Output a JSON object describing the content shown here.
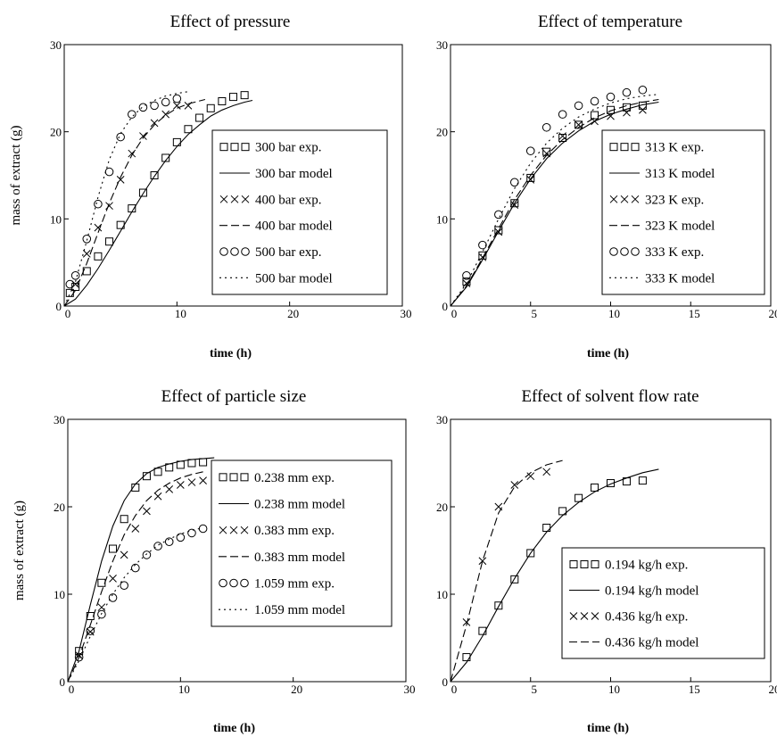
{
  "chart_data": [
    {
      "type": "line",
      "title": "Effect of pressure",
      "xlabel": "time (h)",
      "ylabel": "mass of extract (g)",
      "xlim": [
        0,
        30
      ],
      "ylim": [
        0,
        30
      ],
      "xticks": [
        "0",
        "10",
        "20",
        "30"
      ],
      "yticks": [
        "0",
        "10",
        "20",
        "30"
      ],
      "legend": "right",
      "series": [
        {
          "name": "300 bar exp.",
          "kind": "marker",
          "marker": "square",
          "x": [
            0.5,
            1,
            2,
            3,
            4,
            5,
            6,
            7,
            8,
            9,
            10,
            11,
            12,
            13,
            14,
            15,
            16
          ],
          "y": [
            1.5,
            2.2,
            4,
            5.7,
            7.4,
            9.3,
            11.2,
            13,
            15,
            17,
            18.8,
            20.3,
            21.6,
            22.7,
            23.5,
            24,
            24.2
          ]
        },
        {
          "name": "300 bar model",
          "kind": "line",
          "dash": "solid",
          "x": [
            0,
            1,
            2,
            3,
            4,
            5,
            6,
            7,
            8,
            9,
            10,
            11,
            12,
            13,
            14,
            15,
            16,
            16.7
          ],
          "y": [
            0,
            0.8,
            2.4,
            4.3,
            6.4,
            8.6,
            10.8,
            12.9,
            14.9,
            16.7,
            18.3,
            19.7,
            20.8,
            21.8,
            22.5,
            23,
            23.4,
            23.6
          ]
        },
        {
          "name": "400 bar exp.",
          "kind": "marker",
          "marker": "cross",
          "x": [
            1,
            2,
            3,
            4,
            5,
            6,
            7,
            8,
            9,
            10,
            11
          ],
          "y": [
            2.5,
            6,
            9,
            11.5,
            14.5,
            17.5,
            19.5,
            21,
            22,
            23,
            23
          ]
        },
        {
          "name": "400 bar model",
          "kind": "line",
          "dash": "dash",
          "x": [
            0,
            1,
            2,
            3,
            4,
            5,
            6,
            7,
            8,
            9,
            10,
            11,
            12.5
          ],
          "y": [
            0,
            1.8,
            4.9,
            8.4,
            11.8,
            14.8,
            17.3,
            19.3,
            20.8,
            21.9,
            22.7,
            23.2,
            23.7
          ]
        },
        {
          "name": "500 bar exp.",
          "kind": "marker",
          "marker": "circle",
          "x": [
            0.5,
            1,
            2,
            3,
            4,
            5,
            6,
            7,
            8,
            9,
            10
          ],
          "y": [
            2.5,
            3.5,
            7.7,
            11.7,
            15.4,
            19.4,
            22,
            22.8,
            23,
            23.4,
            23.8
          ]
        },
        {
          "name": "500 bar  model",
          "kind": "line",
          "dash": "dot",
          "x": [
            0,
            1,
            2,
            3,
            4,
            5,
            6,
            7,
            8,
            9,
            10,
            11
          ],
          "y": [
            0,
            2.8,
            7.5,
            12.5,
            16.8,
            19.8,
            21.7,
            22.9,
            23.6,
            24.1,
            24.4,
            24.6
          ]
        }
      ]
    },
    {
      "type": "line",
      "title": "Effect of temperature",
      "xlabel": "time (h)",
      "ylabel": "",
      "xlim": [
        0,
        20
      ],
      "ylim": [
        0,
        30
      ],
      "xticks": [
        "0",
        "5",
        "10",
        "15",
        "20"
      ],
      "yticks": [
        "0",
        "10",
        "20",
        "30"
      ],
      "legend": "right",
      "series": [
        {
          "name": "313 K exp.",
          "kind": "marker",
          "marker": "square",
          "x": [
            1,
            2,
            3,
            4,
            5,
            6,
            7,
            8,
            9,
            10,
            11,
            12
          ],
          "y": [
            2.8,
            5.8,
            8.7,
            11.8,
            14.7,
            17.7,
            19.3,
            20.8,
            21.9,
            22.5,
            22.8,
            23
          ]
        },
        {
          "name": "313 K model",
          "kind": "line",
          "dash": "solid",
          "x": [
            0,
            1,
            2,
            3,
            4,
            5,
            6,
            7,
            8,
            9,
            10,
            11,
            12,
            13
          ],
          "y": [
            0,
            2.2,
            5.3,
            8.6,
            11.8,
            14.6,
            16.9,
            18.7,
            20.1,
            21.2,
            22,
            22.6,
            23.1,
            23.4
          ]
        },
        {
          "name": "323 K exp.",
          "kind": "marker",
          "marker": "cross",
          "x": [
            1,
            2,
            3,
            4,
            5,
            6,
            7,
            8,
            9,
            10,
            11,
            12
          ],
          "y": [
            2.6,
            5.6,
            8.5,
            11.6,
            14.5,
            17.5,
            19.5,
            20.8,
            21.2,
            21.8,
            22.2,
            22.5
          ]
        },
        {
          "name": "323 K model",
          "kind": "line",
          "dash": "dash",
          "x": [
            0,
            1,
            2,
            3,
            4,
            5,
            6,
            7,
            8,
            9,
            10,
            11,
            12,
            13
          ],
          "y": [
            0,
            2.3,
            5.5,
            8.9,
            12.2,
            15,
            17.3,
            19.1,
            20.5,
            21.6,
            22.4,
            23,
            23.4,
            23.7
          ]
        },
        {
          "name": "333 K exp.",
          "kind": "marker",
          "marker": "circle",
          "x": [
            1,
            2,
            3,
            4,
            5,
            6,
            7,
            8,
            9,
            10,
            11,
            12
          ],
          "y": [
            3.5,
            7,
            10.5,
            14.2,
            17.8,
            20.5,
            22,
            23,
            23.5,
            24,
            24.5,
            24.8
          ]
        },
        {
          "name": "333 K model",
          "kind": "line",
          "dash": "dot",
          "x": [
            0,
            1,
            2,
            3,
            4,
            5,
            6,
            7,
            8,
            9,
            10,
            11,
            12,
            13
          ],
          "y": [
            0,
            2.6,
            6.2,
            10,
            13.5,
            16.4,
            18.7,
            20.4,
            21.7,
            22.6,
            23.3,
            23.8,
            24.1,
            24.3
          ]
        }
      ]
    },
    {
      "type": "line",
      "title": "Effect of particle size",
      "xlabel": "time (h)",
      "ylabel": "mass of extract (g)",
      "xlim": [
        0,
        30
      ],
      "ylim": [
        0,
        30
      ],
      "xticks": [
        "0",
        "10",
        "20",
        "30"
      ],
      "yticks": [
        "0",
        "10",
        "20",
        "30"
      ],
      "legend": "right",
      "series": [
        {
          "name": "0.238 mm exp.",
          "kind": "marker",
          "marker": "square",
          "x": [
            1,
            2,
            3,
            4,
            5,
            6,
            7,
            8,
            9,
            10,
            11,
            12
          ],
          "y": [
            3.5,
            7.5,
            11.3,
            15.2,
            18.6,
            22.2,
            23.5,
            24,
            24.5,
            24.8,
            25,
            25.1
          ]
        },
        {
          "name": "0.238 mm model",
          "kind": "line",
          "dash": "solid",
          "x": [
            0,
            1,
            2,
            3,
            4,
            5,
            6,
            7,
            8,
            9,
            10,
            11,
            12,
            13
          ],
          "y": [
            0,
            3.5,
            8.8,
            13.8,
            17.8,
            20.7,
            22.6,
            23.8,
            24.5,
            24.9,
            25.2,
            25.4,
            25.5,
            25.6
          ]
        },
        {
          "name": "0.383 mm  exp.",
          "kind": "marker",
          "marker": "cross",
          "x": [
            1,
            2,
            3,
            4,
            5,
            6,
            7,
            8,
            9,
            10,
            11,
            12
          ],
          "y": [
            3,
            5.7,
            8.5,
            11.8,
            14.5,
            17.5,
            19.5,
            21.2,
            22,
            22.5,
            22.8,
            23
          ]
        },
        {
          "name": "0.383 mm model",
          "kind": "line",
          "dash": "dash",
          "x": [
            0,
            1,
            2,
            3,
            4,
            5,
            6,
            7,
            8,
            9,
            10,
            11,
            12
          ],
          "y": [
            0,
            2.8,
            6.5,
            10.3,
            13.8,
            16.8,
            19,
            20.7,
            21.9,
            22.7,
            23.3,
            23.7,
            24
          ]
        },
        {
          "name": "1.059 mm exp.",
          "kind": "marker",
          "marker": "circle",
          "x": [
            1,
            2,
            3,
            4,
            5,
            6,
            7,
            8,
            9,
            10,
            11,
            12
          ],
          "y": [
            2.8,
            5.8,
            7.7,
            9.6,
            11,
            13,
            14.5,
            15.5,
            16,
            16.5,
            17,
            17.5
          ]
        },
        {
          "name": "1.059 mm model",
          "kind": "line",
          "dash": "dot",
          "x": [
            0,
            1,
            2,
            3,
            4,
            5,
            6,
            7,
            8,
            9,
            10,
            11,
            12
          ],
          "y": [
            0,
            2.4,
            5.2,
            7.8,
            10,
            11.9,
            13.4,
            14.6,
            15.6,
            16.3,
            16.9,
            17.3,
            17.6
          ]
        }
      ]
    },
    {
      "type": "line",
      "title": "Effect of solvent flow rate",
      "xlabel": "time (h)",
      "ylabel": "",
      "xlim": [
        0,
        20
      ],
      "ylim": [
        0,
        30
      ],
      "xticks": [
        "0",
        "5",
        "10",
        "15",
        "20"
      ],
      "yticks": [
        "0",
        "10",
        "20",
        "30"
      ],
      "legend": "bottom-right",
      "series": [
        {
          "name": "0.194 kg/h exp.",
          "kind": "marker",
          "marker": "square",
          "x": [
            1,
            2,
            3,
            4,
            5,
            6,
            7,
            8,
            9,
            10,
            11,
            12
          ],
          "y": [
            2.8,
            5.8,
            8.7,
            11.7,
            14.7,
            17.6,
            19.5,
            21,
            22.2,
            22.7,
            22.9,
            23
          ]
        },
        {
          "name": "0.194 kg/h model",
          "kind": "line",
          "dash": "solid",
          "x": [
            0,
            1,
            2,
            3,
            4,
            5,
            6,
            7,
            8,
            9,
            10,
            11,
            12,
            13
          ],
          "y": [
            0,
            2.2,
            5.2,
            8.6,
            11.8,
            14.7,
            17.1,
            19,
            20.5,
            21.7,
            22.6,
            23.3,
            23.9,
            24.3
          ]
        },
        {
          "name": "0.436 kg/h  exp.",
          "kind": "marker",
          "marker": "cross",
          "x": [
            1,
            2,
            3,
            4,
            5,
            6
          ],
          "y": [
            6.8,
            13.8,
            20,
            22.5,
            23.5,
            24
          ]
        },
        {
          "name": "0.436 kg/h model",
          "kind": "line",
          "dash": "dash",
          "x": [
            0,
            1,
            2,
            3,
            4,
            5,
            6,
            7
          ],
          "y": [
            0,
            6.5,
            13.8,
            19.3,
            22.3,
            23.9,
            24.8,
            25.3
          ]
        }
      ]
    }
  ]
}
